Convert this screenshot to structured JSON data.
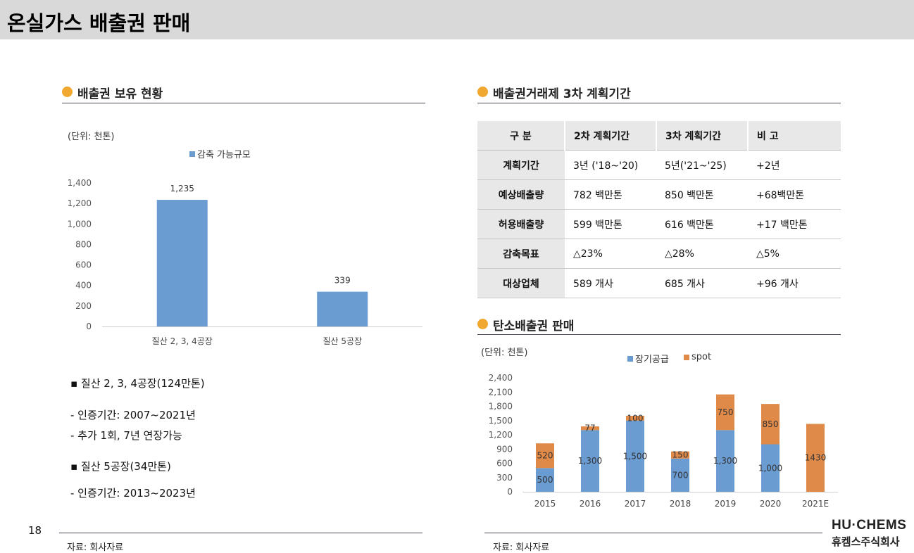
{
  "page_title": "온실가스 배출권 판매",
  "left_section": {
    "title": "배출권 보유 현황",
    "unit": "(단위: 천톤)",
    "bullets": [
      "▪ 질산 2, 3, 4공장(124만톤)",
      "- 인증기간: 2007~2021년",
      "- 추가 1회, 7년 연장가능",
      "▪ 질산 5공장(34만톤)",
      "- 인증기간: 2013~2023년"
    ],
    "source": "자료: 회사자료"
  },
  "chart1": {
    "chart_data": {
      "type": "bar",
      "title": "",
      "categories": [
        "질산 2, 3, 4공장",
        "질산 5공장"
      ],
      "series": [
        {
          "name": "감축 가능규모",
          "values": [
            1235,
            339
          ],
          "color": "#6a9bd1"
        }
      ],
      "value_labels": [
        "1,235",
        "339"
      ],
      "ylim": [
        0,
        1400
      ],
      "yticks": [
        "0",
        "200",
        "400",
        "600",
        "800",
        "1,000",
        "1,200",
        "1,400"
      ],
      "legend": "top-center",
      "grid": false
    }
  },
  "right_top": {
    "title": "배출권거래제 3차 계획기간",
    "table": {
      "header": [
        "구 분",
        "2차 계획기간",
        "3차 계획기간",
        "비 고"
      ],
      "rows": [
        [
          "계획기간",
          "3년 ('18~'20)",
          "5년('21~'25)",
          "+2년"
        ],
        [
          "예상배출량",
          "782 백만톤",
          "850 백만톤",
          "+68백만톤"
        ],
        [
          "허용배출량",
          "599 백만톤",
          "616 백만톤",
          "+17 백만톤"
        ],
        [
          "감축목표",
          "△23%",
          "△28%",
          "△5%"
        ],
        [
          "대상업체",
          "589 개사",
          "685 개사",
          "+96 개사"
        ]
      ]
    }
  },
  "right_bottom": {
    "title": "탄소배출권 판매",
    "unit": "(단위: 천톤)",
    "source": "자료: 회사자료"
  },
  "chart2": {
    "chart_data": {
      "type": "bar",
      "stacked": true,
      "title": "",
      "categories": [
        "2015",
        "2016",
        "2017",
        "2018",
        "2019",
        "2020",
        "2021E"
      ],
      "series": [
        {
          "name": "장기공급",
          "values": [
            500,
            1300,
            1500,
            700,
            1300,
            1000,
            0
          ],
          "labels": [
            "500",
            "1,300",
            "1,500",
            "700",
            "1,300",
            "1,000",
            ""
          ],
          "color": "#6a9bd1"
        },
        {
          "name": "spot",
          "values": [
            520,
            77,
            100,
            150,
            750,
            850,
            1430
          ],
          "labels": [
            "520",
            "77",
            "100",
            "150",
            "750",
            "850",
            "1430"
          ],
          "color": "#e08a4a"
        }
      ],
      "ylim": [
        0,
        2400
      ],
      "yticks": [
        "0",
        "300",
        "600",
        "900",
        "1,200",
        "1,500",
        "1,800",
        "2,100",
        "2,400"
      ],
      "legend": "top-center",
      "grid": false
    }
  },
  "footer": {
    "page_number": "18",
    "logo_main": "HU·CHEMS",
    "logo_sub": "휴켐스주식회사"
  }
}
